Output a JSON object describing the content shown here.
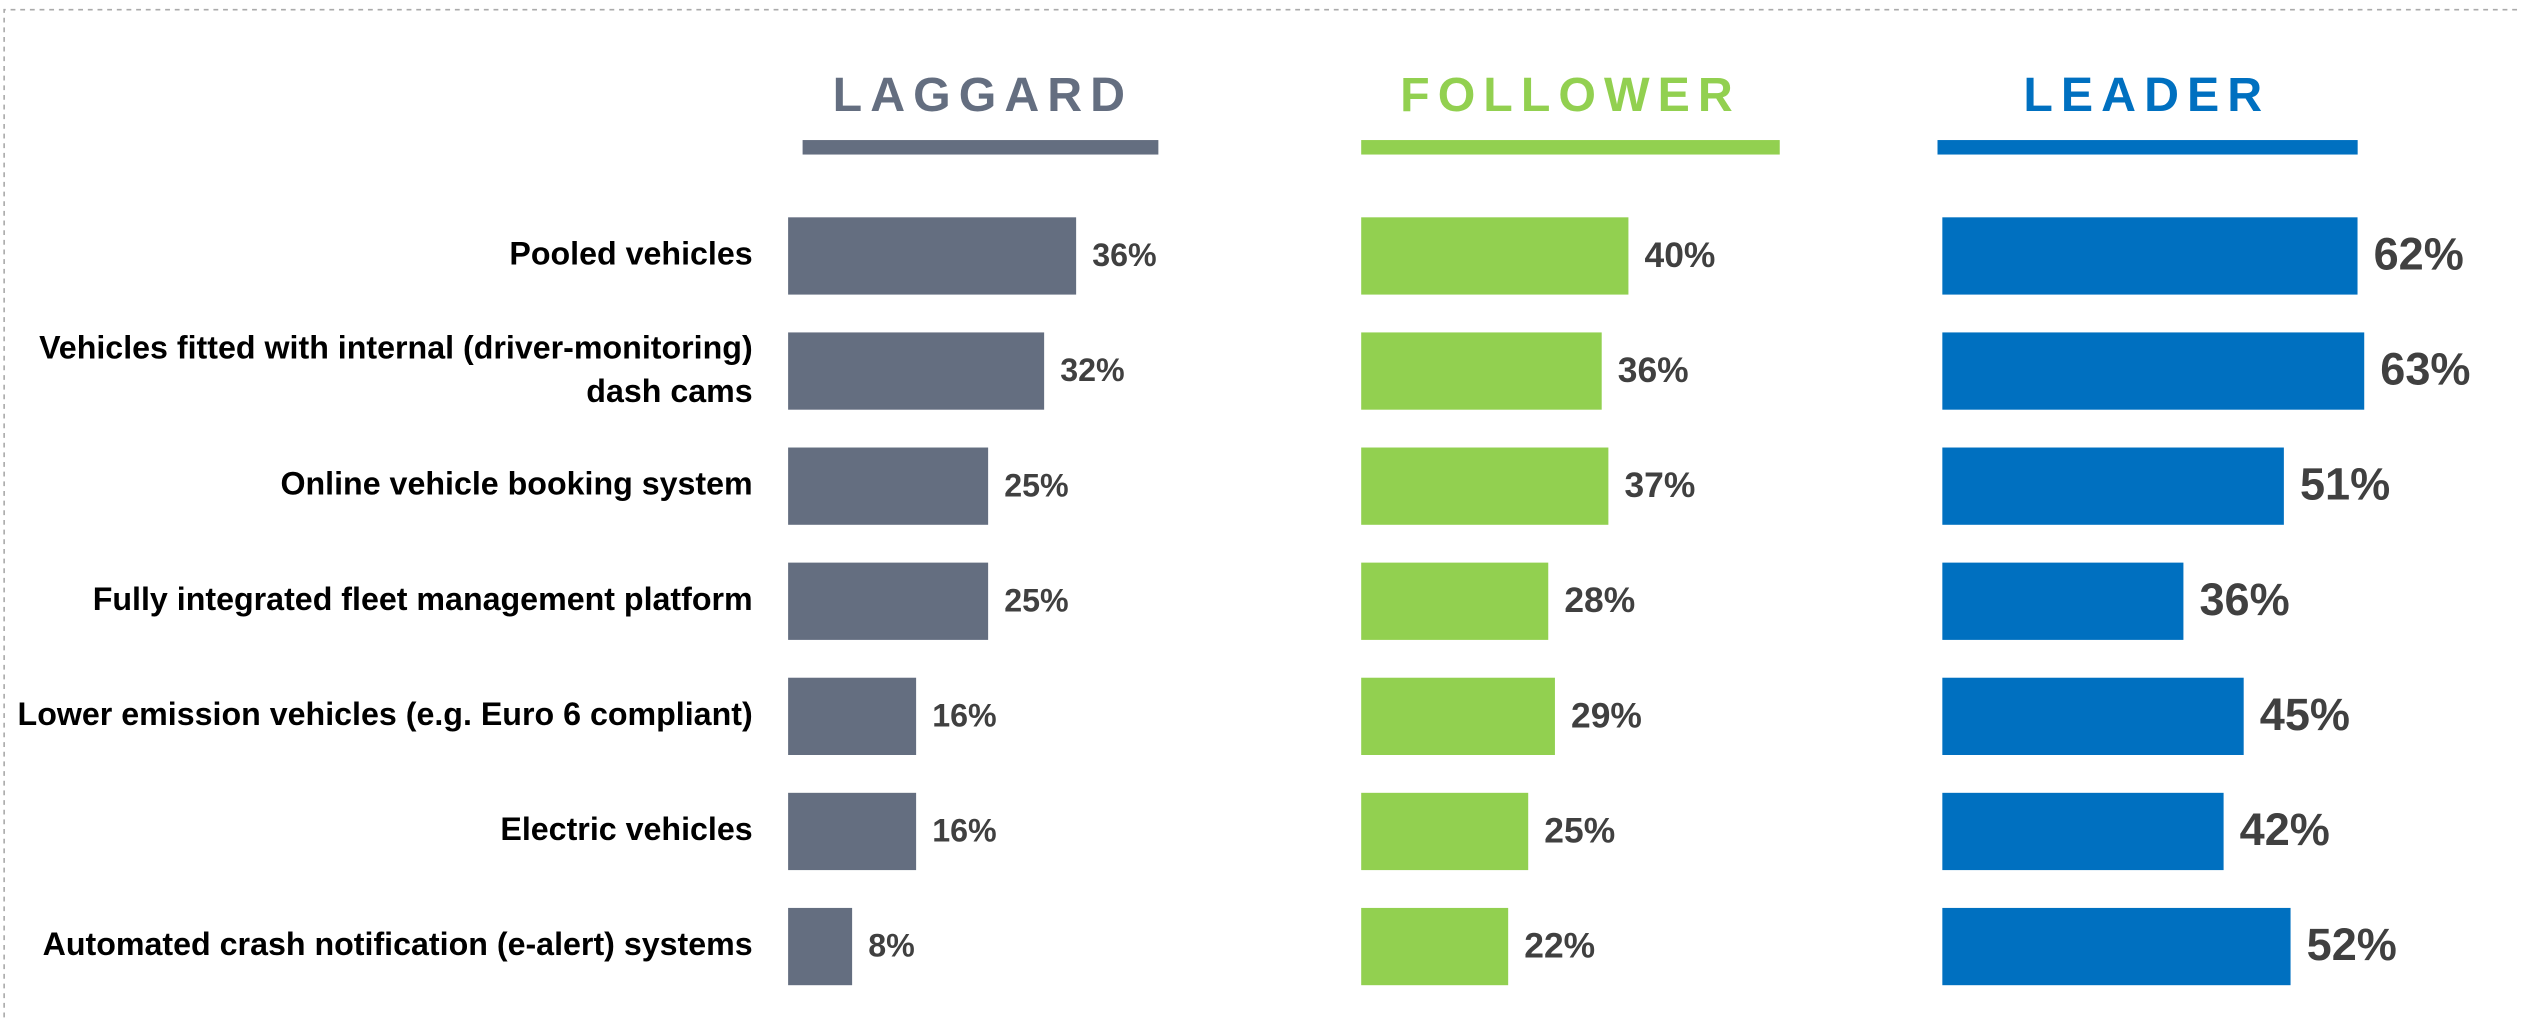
{
  "chart_data": {
    "type": "bar",
    "categories": [
      "Pooled vehicles",
      "Vehicles fitted with internal (driver-monitoring)\ndash cams",
      "Online vehicle booking system",
      "Fully integrated fleet management platform",
      "Lower emission vehicles (e.g. Euro 6 compliant)",
      "Electric vehicles",
      "Automated crash notification (e-alert) systems"
    ],
    "series": [
      {
        "name": "LAGGARD",
        "color": "#646e80",
        "values": [
          36,
          32,
          25,
          25,
          16,
          16,
          8
        ],
        "value_labels": [
          "36%",
          "32%",
          "25%",
          "25%",
          "16%",
          "16%",
          "8%"
        ]
      },
      {
        "name": "FOLLOWER",
        "color": "#92d050",
        "values": [
          40,
          36,
          37,
          28,
          29,
          25,
          22
        ],
        "value_labels": [
          "40%",
          "36%",
          "37%",
          "28%",
          "29%",
          "25%",
          "22%"
        ]
      },
      {
        "name": "LEADER",
        "color": "#0070c0",
        "values": [
          62,
          63,
          51,
          36,
          45,
          42,
          52
        ],
        "value_labels": [
          "62%",
          "63%",
          "51%",
          "36%",
          "45%",
          "42%",
          "52%"
        ]
      }
    ]
  }
}
